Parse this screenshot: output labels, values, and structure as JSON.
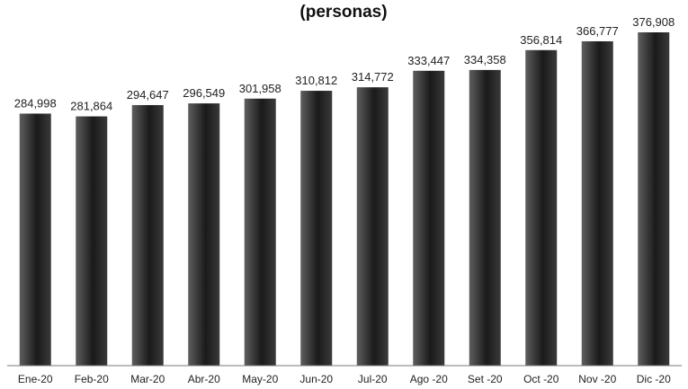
{
  "chart_data": {
    "type": "bar",
    "title": "",
    "subtitle": "(personas)",
    "xlabel": "",
    "ylabel": "",
    "categories": [
      "Ene-20",
      "Feb-20",
      "Mar-20",
      "Abr-20",
      "May-20",
      "Jun-20",
      "Jul-20",
      "Ago -20",
      "Set -20",
      "Oct -20",
      "Nov -20",
      "Dic -20"
    ],
    "values": [
      284998,
      281864,
      294647,
      296549,
      301958,
      310812,
      314772,
      333447,
      334358,
      356814,
      366777,
      376908
    ],
    "value_labels": [
      "284,998",
      "281,864",
      "294,647",
      "296,549",
      "301,958",
      "310,812",
      "314,772",
      "333,447",
      "334,358",
      "356,814",
      "366,777",
      "376,908"
    ],
    "ylim": [
      0,
      380000
    ],
    "grid": false,
    "legend": "none",
    "colors": {
      "bar_light": "#5e5e5e",
      "bar_dark": "#1a1a1a",
      "axis": "#7a7a7a"
    }
  }
}
